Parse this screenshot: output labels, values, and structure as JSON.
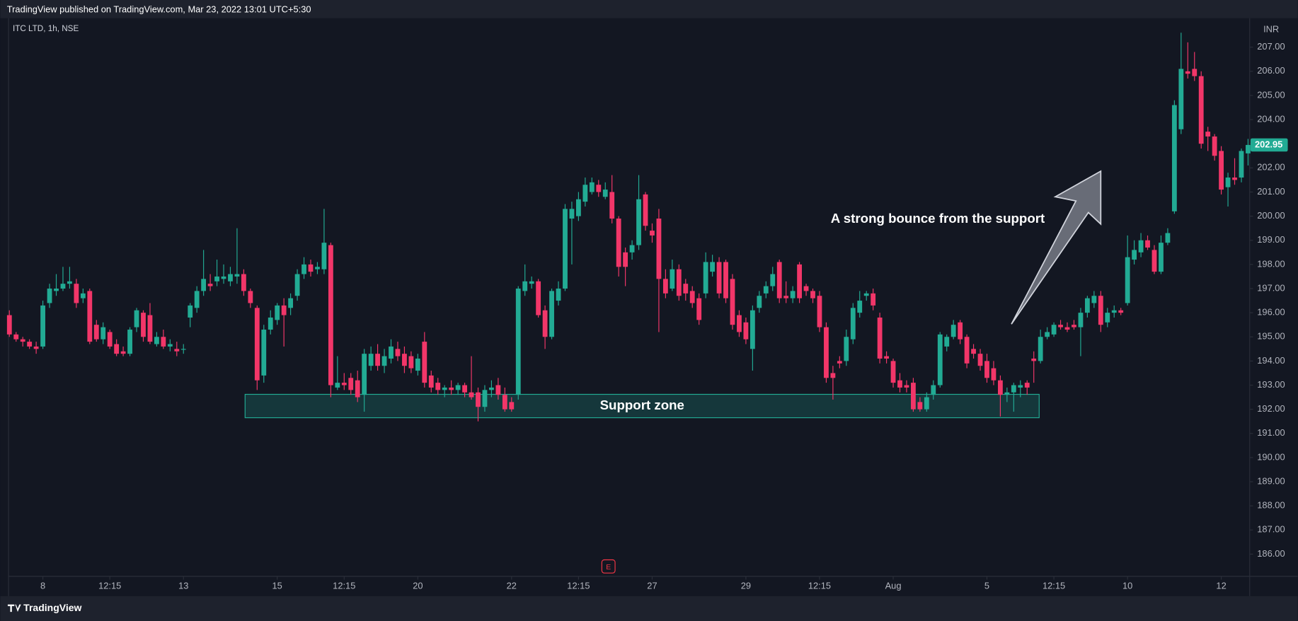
{
  "chart_data": {
    "type": "candlestick",
    "header": "TradingView published on TradingView.com, Mar 23, 2022 13:01 UTC+5:30",
    "title": "ITC LTD, 1h, NSE",
    "currency": "INR",
    "footer": "TradingView",
    "earnings_marker": "E",
    "up_color": "#22ab94",
    "down_color": "#f23669",
    "ylim": [
      185.08,
      208.2
    ],
    "yticks": [
      {
        "value": 186,
        "label": "186.00"
      },
      {
        "value": 187,
        "label": "187.00"
      },
      {
        "value": 188,
        "label": "188.00"
      },
      {
        "value": 189,
        "label": "189.00"
      },
      {
        "value": 190,
        "label": "190.00"
      },
      {
        "value": 191,
        "label": "191.00"
      },
      {
        "value": 192,
        "label": "192.00"
      },
      {
        "value": 193,
        "label": "193.00"
      },
      {
        "value": 194,
        "label": "194.00"
      },
      {
        "value": 195,
        "label": "195.00"
      },
      {
        "value": 196,
        "label": "196.00"
      },
      {
        "value": 197,
        "label": "197.00"
      },
      {
        "value": 198,
        "label": "198.00"
      },
      {
        "value": 199,
        "label": "199.00"
      },
      {
        "value": 200,
        "label": "200.00"
      },
      {
        "value": 201,
        "label": "201.00"
      },
      {
        "value": 202,
        "label": "202.00"
      },
      {
        "value": 203,
        "label": "203.00"
      },
      {
        "value": 204,
        "label": "204.00"
      },
      {
        "value": 205,
        "label": "205.00"
      },
      {
        "value": 206,
        "label": "206.00"
      },
      {
        "value": 207,
        "label": "207.00"
      }
    ],
    "xticks": [
      {
        "value": 5,
        "label": "8"
      },
      {
        "value": 15,
        "label": "12:15"
      },
      {
        "value": 26,
        "label": "13"
      },
      {
        "value": 40,
        "label": "15"
      },
      {
        "value": 50,
        "label": "12:15"
      },
      {
        "value": 61,
        "label": "20"
      },
      {
        "value": 75,
        "label": "22"
      },
      {
        "value": 85,
        "label": "12:15"
      },
      {
        "value": 96,
        "label": "27"
      },
      {
        "value": 110,
        "label": "29"
      },
      {
        "value": 121,
        "label": "12:15"
      },
      {
        "value": 132,
        "label": "Aug"
      },
      {
        "value": 146,
        "label": "5"
      },
      {
        "value": 156,
        "label": "12:15"
      },
      {
        "value": 167,
        "label": "10"
      },
      {
        "value": 181,
        "label": "12"
      }
    ],
    "last_price": {
      "value": 202.95,
      "label": "202.95"
    },
    "support_zone": {
      "label": "Support zone",
      "x": [
        35.2,
        153.8
      ],
      "y": [
        191.65,
        192.62
      ]
    },
    "annotation": "A strong bounce from the support",
    "ohlc": [
      [
        195.9,
        196.1,
        195.0,
        195.1
      ],
      [
        195.1,
        195.2,
        194.8,
        194.9
      ],
      [
        194.9,
        195.0,
        194.6,
        194.8
      ],
      [
        194.8,
        194.9,
        194.5,
        194.6
      ],
      [
        194.6,
        194.8,
        194.3,
        194.5
      ],
      [
        194.6,
        196.5,
        194.5,
        196.3
      ],
      [
        196.4,
        197.2,
        196.2,
        197.0
      ],
      [
        196.9,
        197.6,
        196.7,
        197.0
      ],
      [
        197.0,
        197.9,
        196.9,
        197.2
      ],
      [
        197.2,
        197.9,
        197.0,
        197.3
      ],
      [
        197.2,
        197.4,
        196.2,
        196.4
      ],
      [
        196.6,
        197.0,
        196.4,
        196.8
      ],
      [
        196.9,
        197.0,
        194.7,
        194.8
      ],
      [
        195.5,
        195.7,
        194.8,
        194.9
      ],
      [
        194.9,
        195.6,
        194.7,
        195.4
      ],
      [
        195.2,
        195.3,
        194.5,
        194.6
      ],
      [
        194.7,
        194.9,
        194.2,
        194.3
      ],
      [
        194.4,
        194.6,
        194.2,
        194.3
      ],
      [
        194.3,
        195.4,
        194.2,
        195.3
      ],
      [
        195.4,
        196.2,
        195.2,
        196.1
      ],
      [
        196.0,
        196.1,
        194.8,
        195.0
      ],
      [
        195.9,
        196.4,
        194.7,
        194.8
      ],
      [
        194.7,
        195.2,
        194.6,
        195.0
      ],
      [
        195.0,
        195.3,
        194.5,
        194.6
      ],
      [
        194.6,
        194.9,
        194.4,
        194.7
      ],
      [
        194.5,
        194.8,
        194.2,
        194.4
      ],
      [
        194.5,
        194.7,
        194.3,
        194.5
      ],
      [
        195.8,
        196.4,
        195.4,
        196.3
      ],
      [
        196.2,
        197.1,
        196.0,
        196.9
      ],
      [
        196.9,
        198.6,
        196.7,
        197.4
      ],
      [
        197.2,
        197.6,
        196.9,
        197.1
      ],
      [
        197.3,
        198.2,
        197.1,
        197.5
      ],
      [
        197.4,
        198.0,
        197.2,
        197.5
      ],
      [
        197.3,
        197.9,
        197.1,
        197.6
      ],
      [
        197.5,
        199.5,
        197.2,
        197.6
      ],
      [
        197.6,
        197.8,
        196.7,
        196.9
      ],
      [
        196.9,
        197.0,
        196.2,
        196.4
      ],
      [
        196.2,
        196.3,
        192.8,
        193.2
      ],
      [
        193.4,
        195.5,
        193.1,
        195.3
      ],
      [
        195.3,
        196.1,
        195.1,
        195.8
      ],
      [
        195.7,
        196.4,
        195.5,
        196.3
      ],
      [
        196.3,
        196.6,
        194.6,
        195.9
      ],
      [
        196.2,
        196.8,
        195.9,
        196.6
      ],
      [
        196.7,
        197.8,
        196.5,
        197.6
      ],
      [
        197.6,
        198.3,
        197.4,
        198.0
      ],
      [
        198.0,
        198.2,
        197.5,
        197.7
      ],
      [
        197.8,
        198.1,
        197.6,
        197.9
      ],
      [
        197.8,
        200.3,
        197.6,
        198.9
      ],
      [
        198.8,
        198.9,
        192.5,
        193.0
      ],
      [
        192.9,
        194.2,
        192.8,
        193.1
      ],
      [
        193.1,
        193.5,
        192.8,
        193.0
      ],
      [
        193.3,
        193.5,
        192.6,
        192.8
      ],
      [
        193.2,
        193.6,
        192.3,
        192.5
      ],
      [
        192.6,
        194.5,
        191.9,
        194.3
      ],
      [
        193.8,
        194.6,
        193.6,
        194.3
      ],
      [
        194.3,
        194.7,
        193.6,
        193.8
      ],
      [
        193.8,
        194.5,
        193.5,
        194.2
      ],
      [
        194.1,
        194.9,
        193.9,
        194.6
      ],
      [
        194.5,
        194.8,
        194.0,
        194.2
      ],
      [
        194.3,
        194.6,
        193.5,
        193.8
      ],
      [
        194.2,
        194.4,
        193.5,
        193.7
      ],
      [
        193.6,
        194.3,
        193.4,
        194.1
      ],
      [
        194.8,
        195.2,
        192.9,
        193.1
      ],
      [
        193.4,
        193.6,
        192.7,
        192.9
      ],
      [
        193.1,
        193.3,
        192.6,
        192.8
      ],
      [
        192.8,
        193.0,
        192.5,
        192.9
      ],
      [
        192.9,
        193.2,
        192.6,
        192.8
      ],
      [
        192.8,
        193.1,
        192.6,
        193.0
      ],
      [
        193.0,
        193.1,
        192.5,
        192.7
      ],
      [
        192.7,
        194.2,
        192.4,
        192.5
      ],
      [
        192.7,
        192.9,
        191.5,
        192.1
      ],
      [
        192.1,
        193.0,
        191.9,
        192.8
      ],
      [
        192.8,
        193.2,
        192.5,
        192.9
      ],
      [
        193.0,
        193.3,
        192.4,
        192.6
      ],
      [
        192.6,
        192.9,
        191.9,
        192.0
      ],
      [
        192.3,
        192.5,
        191.9,
        192.0
      ],
      [
        192.6,
        197.1,
        192.4,
        197.0
      ],
      [
        196.9,
        198.0,
        196.7,
        197.3
      ],
      [
        197.2,
        197.5,
        197.0,
        197.3
      ],
      [
        197.3,
        197.4,
        195.8,
        195.9
      ],
      [
        196.1,
        196.3,
        194.5,
        195.0
      ],
      [
        195.0,
        197.0,
        194.9,
        196.9
      ],
      [
        196.5,
        197.3,
        196.3,
        197.0
      ],
      [
        197.0,
        200.5,
        196.9,
        200.3
      ],
      [
        199.9,
        200.6,
        198.0,
        200.3
      ],
      [
        200.0,
        201.0,
        199.8,
        200.7
      ],
      [
        200.6,
        201.6,
        200.4,
        201.3
      ],
      [
        201.0,
        201.6,
        200.9,
        201.4
      ],
      [
        201.3,
        201.5,
        200.8,
        201.0
      ],
      [
        200.8,
        201.4,
        200.7,
        201.1
      ],
      [
        201.0,
        201.7,
        199.7,
        199.9
      ],
      [
        199.9,
        200.0,
        197.5,
        197.9
      ],
      [
        198.5,
        198.7,
        197.1,
        197.9
      ],
      [
        198.5,
        199.0,
        198.2,
        198.8
      ],
      [
        198.8,
        201.7,
        198.6,
        200.7
      ],
      [
        200.9,
        201.0,
        199.4,
        199.6
      ],
      [
        199.4,
        199.7,
        198.9,
        199.2
      ],
      [
        199.9,
        200.3,
        195.2,
        197.4
      ],
      [
        197.4,
        197.8,
        196.6,
        196.8
      ],
      [
        197.0,
        198.2,
        196.9,
        197.8
      ],
      [
        197.8,
        198.0,
        196.5,
        196.7
      ],
      [
        197.2,
        197.4,
        196.5,
        196.8
      ],
      [
        196.9,
        197.1,
        196.2,
        196.4
      ],
      [
        196.6,
        196.8,
        195.5,
        195.7
      ],
      [
        196.8,
        198.5,
        196.6,
        198.1
      ],
      [
        197.7,
        198.4,
        197.5,
        198.1
      ],
      [
        198.1,
        198.3,
        196.6,
        196.8
      ],
      [
        198.1,
        198.2,
        196.4,
        196.6
      ],
      [
        197.4,
        197.6,
        195.3,
        195.5
      ],
      [
        195.9,
        196.1,
        195.0,
        195.2
      ],
      [
        195.6,
        195.8,
        194.7,
        194.9
      ],
      [
        194.5,
        196.3,
        193.6,
        196.1
      ],
      [
        196.2,
        196.9,
        196.0,
        196.7
      ],
      [
        196.8,
        197.3,
        196.6,
        197.1
      ],
      [
        197.1,
        197.9,
        196.9,
        197.6
      ],
      [
        198.1,
        198.2,
        196.4,
        196.6
      ],
      [
        196.7,
        197.3,
        196.4,
        196.6
      ],
      [
        196.6,
        197.1,
        196.4,
        196.9
      ],
      [
        198.0,
        198.1,
        196.4,
        196.6
      ],
      [
        197.1,
        197.2,
        196.7,
        196.9
      ],
      [
        196.9,
        197.0,
        196.4,
        196.6
      ],
      [
        196.7,
        196.9,
        195.2,
        195.4
      ],
      [
        195.4,
        195.6,
        193.1,
        193.3
      ],
      [
        193.5,
        193.8,
        192.4,
        193.3
      ],
      [
        194.0,
        194.2,
        193.7,
        193.9
      ],
      [
        194.0,
        195.3,
        193.8,
        195.0
      ],
      [
        194.9,
        196.4,
        194.7,
        196.2
      ],
      [
        196.0,
        196.9,
        195.8,
        196.5
      ],
      [
        196.7,
        196.9,
        196.5,
        196.8
      ],
      [
        196.8,
        197.0,
        196.1,
        196.3
      ],
      [
        195.8,
        196.0,
        193.9,
        194.1
      ],
      [
        194.2,
        194.4,
        193.9,
        194.1
      ],
      [
        194.0,
        194.1,
        192.9,
        193.1
      ],
      [
        193.2,
        193.5,
        192.7,
        192.9
      ],
      [
        193.0,
        193.2,
        192.7,
        192.9
      ],
      [
        193.1,
        193.3,
        191.9,
        192.0
      ],
      [
        192.3,
        192.5,
        191.9,
        192.0
      ],
      [
        192.0,
        192.7,
        191.9,
        192.5
      ],
      [
        192.6,
        193.2,
        192.4,
        193.0
      ],
      [
        193.0,
        195.2,
        192.9,
        195.1
      ],
      [
        194.6,
        195.1,
        194.4,
        195.0
      ],
      [
        195.0,
        195.7,
        194.9,
        195.5
      ],
      [
        195.6,
        195.7,
        194.7,
        194.9
      ],
      [
        195.0,
        195.1,
        193.7,
        193.9
      ],
      [
        194.5,
        194.7,
        194.1,
        194.3
      ],
      [
        194.3,
        194.5,
        193.6,
        193.8
      ],
      [
        194.0,
        194.3,
        193.1,
        193.3
      ],
      [
        193.7,
        194.0,
        193.0,
        193.2
      ],
      [
        193.2,
        193.4,
        191.7,
        192.6
      ],
      [
        192.6,
        192.9,
        192.3,
        192.7
      ],
      [
        192.7,
        193.1,
        191.9,
        193.0
      ],
      [
        192.9,
        193.2,
        192.5,
        193.0
      ],
      [
        193.1,
        193.2,
        192.6,
        192.9
      ],
      [
        194.1,
        194.4,
        193.1,
        194.0
      ],
      [
        194.0,
        195.3,
        193.9,
        195.0
      ],
      [
        195.0,
        195.4,
        194.9,
        195.2
      ],
      [
        195.1,
        195.6,
        195.0,
        195.5
      ],
      [
        195.5,
        195.7,
        195.3,
        195.4
      ],
      [
        195.4,
        195.6,
        195.2,
        195.3
      ],
      [
        195.5,
        195.7,
        195.3,
        195.4
      ],
      [
        195.4,
        196.2,
        194.2,
        196.0
      ],
      [
        196.0,
        196.7,
        195.8,
        196.6
      ],
      [
        196.4,
        196.9,
        196.2,
        196.7
      ],
      [
        196.7,
        196.9,
        195.2,
        195.5
      ],
      [
        195.6,
        196.2,
        195.4,
        196.0
      ],
      [
        196.0,
        196.3,
        195.8,
        196.1
      ],
      [
        196.1,
        196.2,
        195.9,
        196.0
      ],
      [
        196.4,
        199.2,
        196.3,
        198.3
      ],
      [
        198.2,
        199.0,
        198.0,
        198.6
      ],
      [
        198.5,
        199.3,
        198.3,
        199.0
      ],
      [
        199.0,
        199.2,
        198.6,
        198.7
      ],
      [
        198.6,
        198.8,
        197.6,
        197.7
      ],
      [
        197.7,
        199.2,
        197.6,
        198.9
      ],
      [
        198.9,
        199.5,
        198.8,
        199.3
      ],
      [
        200.2,
        204.8,
        200.1,
        204.6
      ],
      [
        203.6,
        207.6,
        203.4,
        206.1
      ],
      [
        206.0,
        207.2,
        205.7,
        205.9
      ],
      [
        206.1,
        206.8,
        205.6,
        205.8
      ],
      [
        205.8,
        206.0,
        202.8,
        203.0
      ],
      [
        203.5,
        203.7,
        202.7,
        203.3
      ],
      [
        203.3,
        203.4,
        202.3,
        202.5
      ],
      [
        202.7,
        202.9,
        200.9,
        201.1
      ],
      [
        201.2,
        201.8,
        200.4,
        201.6
      ],
      [
        201.6,
        202.4,
        201.3,
        201.5
      ],
      [
        201.6,
        202.8,
        201.4,
        202.7
      ],
      [
        202.6,
        203.2,
        202.1,
        202.95
      ]
    ]
  }
}
